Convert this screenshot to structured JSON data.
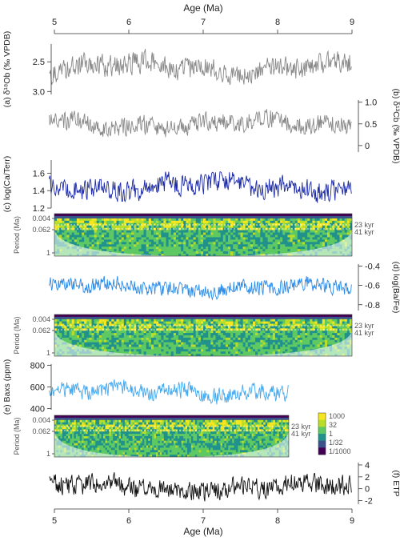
{
  "chart_data": {
    "type": "line",
    "x_axis": {
      "label": "Age (Ma)",
      "range": [
        5,
        9
      ],
      "ticks": [
        "5",
        "6",
        "7",
        "8",
        "9"
      ]
    },
    "panels": [
      {
        "id": "a",
        "type": "line",
        "label": "(a) δ¹⁸Ob (‰ VPDB)",
        "side": "left",
        "reversed": true,
        "ylim": [
          2.2,
          3.05
        ],
        "ticks": [
          "2.5",
          "3.0"
        ],
        "color": "#888888",
        "x_end": 9.0,
        "base": 2.6,
        "amp": 0.17,
        "seed": 11
      },
      {
        "id": "b",
        "type": "line",
        "label": "(b) δ¹³Cb (‰ VPDB)",
        "side": "right",
        "reversed": false,
        "ylim": [
          -0.15,
          1.05
        ],
        "ticks": [
          "1.0",
          "0.5",
          "0"
        ],
        "color": "#888888",
        "x_end": 9.0,
        "base": 0.5,
        "amp": 0.2,
        "seed": 23
      },
      {
        "id": "c",
        "type": "line",
        "label": "(c) log(Ca/Terr)",
        "side": "left",
        "reversed": false,
        "ylim": [
          1.2,
          1.75
        ],
        "ticks": [
          "1.6",
          "1.4",
          "1.2"
        ],
        "color": "#1c2aa8",
        "x_end": 9.0,
        "base": 1.45,
        "amp": 0.11,
        "seed": 37
      },
      {
        "id": "c-wavelet",
        "type": "heatmap",
        "ylabel": "Period (Ma)",
        "side": "left",
        "ticks": [
          "0.004",
          "0.062",
          "1"
        ],
        "bands": [
          "23 kyr",
          "41 kyr"
        ],
        "x_end": 9.0,
        "seed": 41
      },
      {
        "id": "d",
        "type": "line",
        "label": "(d) log(Ba/Fe)",
        "side": "right",
        "reversed": false,
        "ylim": [
          -0.86,
          -0.38
        ],
        "ticks": [
          "-0.4",
          "-0.6",
          "-0.8"
        ],
        "color": "#2a8be8",
        "x_end": 9.0,
        "base": -0.62,
        "amp": 0.07,
        "seed": 53
      },
      {
        "id": "d-wavelet",
        "type": "heatmap",
        "ylabel": "Period (Ma)",
        "side": "left",
        "ticks": [
          "0.004",
          "0.062",
          "1"
        ],
        "bands": [
          "23 kyr",
          "41 kyr"
        ],
        "x_end": 9.0,
        "seed": 61
      },
      {
        "id": "e",
        "type": "line",
        "label": "(e) Baxs (ppm)",
        "side": "left",
        "reversed": false,
        "ylim": [
          390,
          810
        ],
        "ticks": [
          "800",
          "600",
          "400"
        ],
        "color": "#44aaf0",
        "x_end": 8.15,
        "base": 560,
        "amp": 70,
        "seed": 71
      },
      {
        "id": "e-wavelet",
        "type": "heatmap",
        "ylabel": "Period (Ma)",
        "side": "left",
        "ticks": [
          "0.004",
          "0.062",
          "1"
        ],
        "bands": [
          "23 kyr",
          "41 kyr"
        ],
        "x_end": 8.15,
        "seed": 83,
        "colorbar": {
          "labels": [
            "1000",
            "32",
            "1",
            "1/32",
            "1/1000"
          ],
          "colors": [
            "#f6e620",
            "#b8de29",
            "#5ec962",
            "#21918c",
            "#3b528b",
            "#440154"
          ]
        }
      },
      {
        "id": "f",
        "type": "line",
        "label": "(f) ETP",
        "side": "right",
        "reversed": false,
        "ylim": [
          -2.6,
          4.4
        ],
        "ticks": [
          "4",
          "2",
          "0",
          "-2"
        ],
        "color": "#111111",
        "x_end": 9.0,
        "base": 0.3,
        "amp": 1.5,
        "seed": 97
      }
    ]
  }
}
